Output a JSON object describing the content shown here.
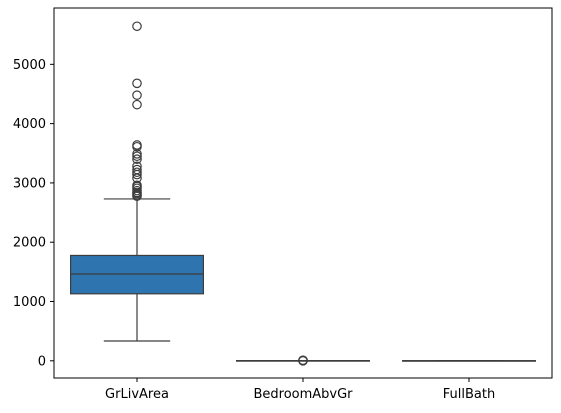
{
  "chart_data": {
    "type": "box",
    "title": "",
    "xlabel": "",
    "ylabel": "",
    "ylim": [
      -290,
      5950
    ],
    "yticks": [
      0,
      1000,
      2000,
      3000,
      4000,
      5000
    ],
    "ytick_labels": [
      "0",
      "1000",
      "2000",
      "3000",
      "4000",
      "5000"
    ],
    "grid": false,
    "legend": "none",
    "categories": [
      "GrLivArea",
      "BedroomAbvGr",
      "FullBath"
    ],
    "boxes": [
      {
        "category": "GrLivArea",
        "color": "#2e75b0",
        "whisker_low": 334,
        "q1": 1130,
        "median": 1464,
        "q3": 1777,
        "whisker_high": 2730,
        "outliers": [
          2775,
          2795,
          2820,
          2840,
          2870,
          2910,
          2940,
          2960,
          3080,
          3140,
          3180,
          3225,
          3280,
          3400,
          3450,
          3490,
          3610,
          3640,
          4320,
          4480,
          4680,
          5642
        ]
      },
      {
        "category": "BedroomAbvGr",
        "color": "#e1812c",
        "whisker_low": 1,
        "q1": 2,
        "median": 3,
        "q3": 3,
        "whisker_high": 4,
        "outliers": [
          0,
          5,
          6,
          8
        ]
      },
      {
        "category": "FullBath",
        "color": "#3a923a",
        "whisker_low": 0,
        "q1": 1,
        "median": 2,
        "q3": 2,
        "whisker_high": 3,
        "outliers": []
      }
    ],
    "colors": {
      "line": "#3d3d3d",
      "axis": "#000000",
      "background": "#ffffff"
    }
  }
}
